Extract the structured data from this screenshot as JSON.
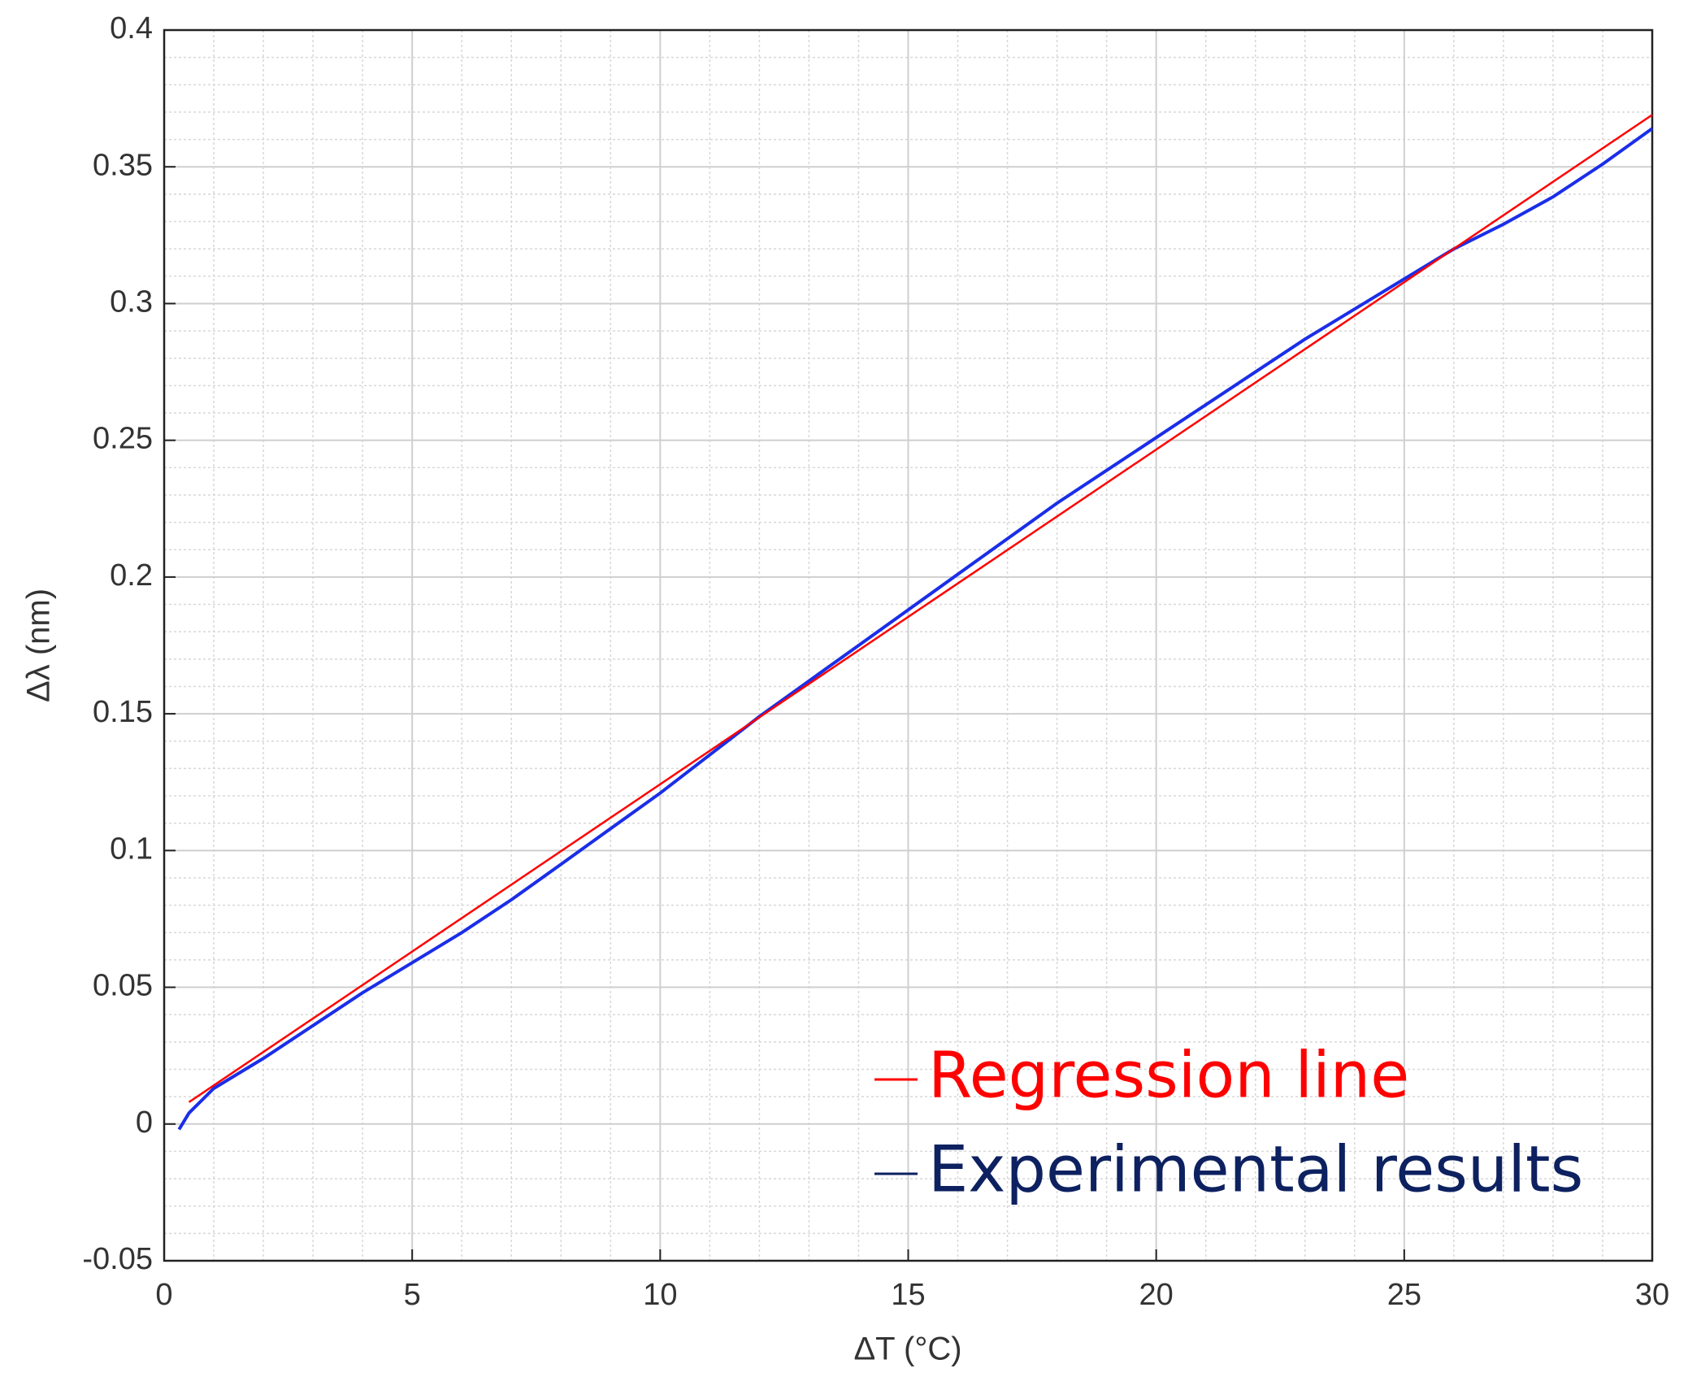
{
  "chart_data": {
    "type": "line",
    "xlabel": "ΔT (°C)",
    "ylabel": "Δλ  (nm)",
    "xlim": [
      0,
      30
    ],
    "xticks": [
      0,
      5,
      10,
      15,
      20,
      25,
      30
    ],
    "ylim": [
      -0.05,
      0.4
    ],
    "yticks": [
      -0.05,
      0,
      0.05,
      0.1,
      0.15,
      0.2,
      0.25,
      0.3,
      0.35,
      0.4
    ],
    "grid": true,
    "minor_grid": true,
    "legend": "lower right",
    "series": [
      {
        "name": "Regression line",
        "color": "#ff0000",
        "x": [
          0.5,
          30
        ],
        "values": [
          0.008,
          0.369
        ]
      },
      {
        "name": "Experimental results",
        "color": "#1a2ee8",
        "text_color": "#0d2160",
        "x": [
          0.3,
          0.5,
          1,
          2,
          3,
          4,
          5,
          6,
          7,
          8,
          9,
          10,
          11,
          12,
          13,
          14,
          15,
          16,
          17,
          18,
          19,
          20,
          21,
          22,
          23,
          24,
          25,
          26,
          27,
          28,
          29,
          30
        ],
        "values": [
          -0.002,
          0.004,
          0.013,
          0.024,
          0.036,
          0.048,
          0.059,
          0.07,
          0.082,
          0.095,
          0.108,
          0.121,
          0.135,
          0.149,
          0.162,
          0.175,
          0.188,
          0.201,
          0.214,
          0.227,
          0.239,
          0.251,
          0.263,
          0.275,
          0.287,
          0.298,
          0.309,
          0.32,
          0.329,
          0.339,
          0.351,
          0.364
        ]
      }
    ]
  }
}
